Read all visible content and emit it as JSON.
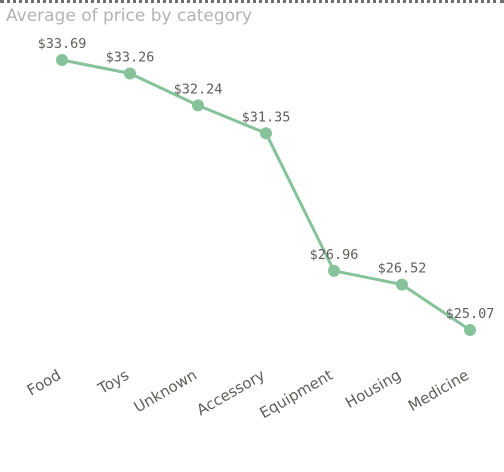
{
  "visual": {
    "title": "Average of price by category"
  },
  "chart_data": {
    "type": "line",
    "title": "Average of price by category",
    "xlabel": "",
    "ylabel": "",
    "categories": [
      "Food",
      "Toys",
      "Unknown",
      "Accessory",
      "Equipment",
      "Housing",
      "Medicine"
    ],
    "values": [
      33.69,
      33.26,
      32.24,
      31.35,
      26.96,
      26.52,
      25.07
    ],
    "data_labels": [
      "$33.69",
      "$33.26",
      "$32.24",
      "$31.35",
      "$26.96",
      "$26.52",
      "$25.07"
    ],
    "value_format": "currency-usd",
    "grid": false,
    "legend": "none",
    "colors": {
      "line": "#86c39b",
      "marker": "#86c39b",
      "label": "#605e5c",
      "title": "#b3b3b3"
    }
  }
}
